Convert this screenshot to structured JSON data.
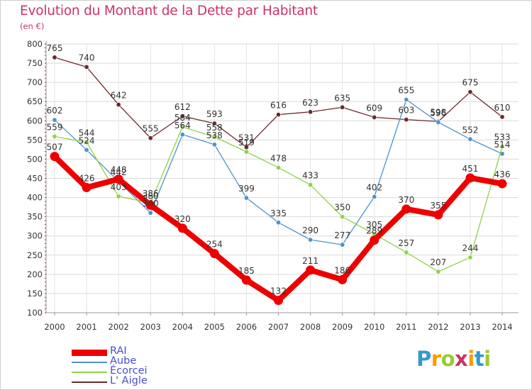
{
  "header": {
    "title": "Evolution du Montant de la Dette par Habitant",
    "unit": "(en €)"
  },
  "colors": {
    "title": "#cc3366",
    "legend_text": "#4b4bd2",
    "gridline": "#d9d9d9"
  },
  "logo": {
    "text": "Proxiti",
    "colors": [
      "#3399cc",
      "#ff9900",
      "#99cc33",
      "#cc3366",
      "#ff9900",
      "#3399cc",
      "#99cc33"
    ]
  },
  "chart_data": {
    "type": "line",
    "x": [
      2000,
      2001,
      2002,
      2003,
      2004,
      2005,
      2006,
      2007,
      2008,
      2009,
      2010,
      2011,
      2012,
      2013,
      2014
    ],
    "ylim": [
      100,
      800
    ],
    "yticks": [
      100,
      150,
      200,
      250,
      300,
      350,
      400,
      450,
      500,
      550,
      600,
      650,
      700,
      750,
      800
    ],
    "grid": true,
    "legend_position": "bottom-left",
    "series": [
      {
        "name": "L' Aigle",
        "color": "#6b2a2a",
        "values": [
          765,
          740,
          642,
          555,
          612,
          593,
          531,
          616,
          623,
          635,
          609,
          603,
          598,
          675,
          610
        ]
      },
      {
        "name": "Aube",
        "color": "#4d94c9",
        "values": [
          602,
          524,
          442,
          360,
          564,
          538,
          399,
          335,
          290,
          277,
          402,
          655,
          596,
          552,
          514
        ]
      },
      {
        "name": "Écorcei",
        "color": "#8fd24a",
        "values": [
          559,
          544,
          403,
          386,
          584,
          558,
          519,
          478,
          433,
          350,
          305,
          257,
          207,
          244,
          533
        ]
      },
      {
        "name": "RAI",
        "color": "#ee0000",
        "values": [
          507,
          426,
          448,
          380,
          320,
          254,
          185,
          132,
          211,
          186,
          289,
          370,
          355,
          451,
          436
        ]
      }
    ]
  }
}
